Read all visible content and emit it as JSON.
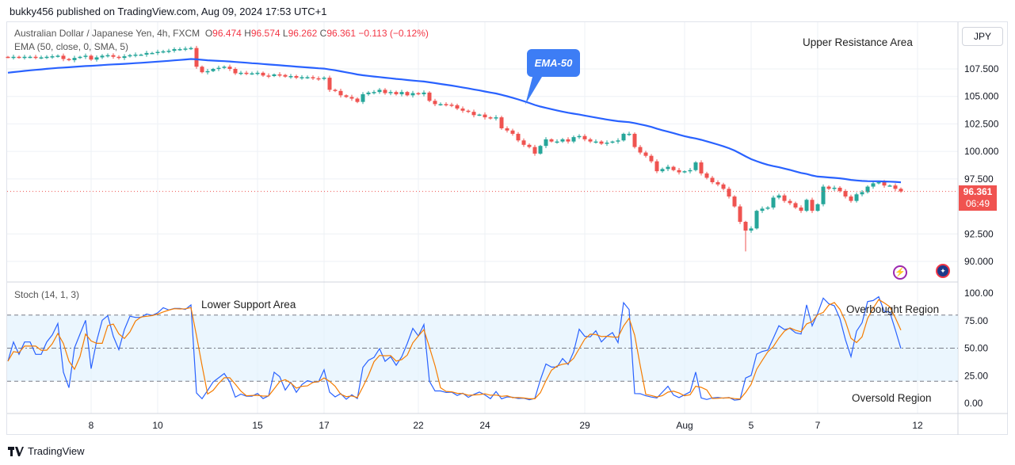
{
  "header": {
    "published": "bukky456 published on TradingView.com, Aug 09, 2024 17:53 UTC+1"
  },
  "legend": {
    "symbol": "Australian Dollar / Japanese Yen, 4h, FXCM",
    "o_label": "O",
    "o": "96.474",
    "h_label": "H",
    "h": "96.574",
    "l_label": "L",
    "l": "96.262",
    "c_label": "C",
    "c": "96.361",
    "change": "−0.113 (−0.12%)",
    "ema": "EMA (50, close, 0, SMA, 5)",
    "stoch": "Stoch (14, 1, 3)"
  },
  "currency": "JPY",
  "last_price": {
    "price": "96.361",
    "countdown": "06:49"
  },
  "annotations": {
    "upper": "Upper Resistance Area",
    "ema": "EMA-50",
    "lower": "Lower Support Area",
    "overbought": "Overbought Region",
    "oversold": "Oversold Region"
  },
  "footer": {
    "brand": "TradingView"
  },
  "icons": {
    "lightning": "lightning-icon",
    "flag": "au-flag-icon"
  },
  "colors": {
    "up": "#26a69a",
    "down": "#ef5350",
    "ema": "#2962ff",
    "k": "#2962ff",
    "d": "#f57c00",
    "band": "#e3f2fd"
  },
  "chart_data": {
    "type": "candlestick",
    "title": "Australian Dollar / Japanese Yen, 4h, FXCM",
    "price_ticks": [
      "107.500",
      "105.000",
      "102.500",
      "100.000",
      "97.500",
      "92.500",
      "90.000"
    ],
    "price_tick_values": [
      107.5,
      105,
      102.5,
      100,
      97.5,
      92.5,
      90
    ],
    "ylim": [
      89.2,
      111.0
    ],
    "stoch_ticks": [
      "100.00",
      "75.00",
      "50.00",
      "25.00",
      "0.00"
    ],
    "stoch_tick_values": [
      100,
      75,
      50,
      25,
      0
    ],
    "stoch_levels": [
      80,
      50,
      20
    ],
    "x_ticks": [
      {
        "label": "8",
        "bar": 15
      },
      {
        "label": "10",
        "bar": 27
      },
      {
        "label": "15",
        "bar": 45
      },
      {
        "label": "17",
        "bar": 57
      },
      {
        "label": "22",
        "bar": 74
      },
      {
        "label": "24",
        "bar": 86
      },
      {
        "label": "29",
        "bar": 104
      },
      {
        "label": "Aug",
        "bar": 122
      },
      {
        "label": "5",
        "bar": 134
      },
      {
        "label": "7",
        "bar": 146
      },
      {
        "label": "12",
        "bar": 164
      }
    ],
    "ema_seed": 107.1,
    "closes": [
      108.55,
      108.6,
      108.55,
      108.6,
      108.6,
      108.55,
      108.55,
      108.6,
      108.65,
      108.7,
      108.4,
      108.3,
      108.5,
      108.6,
      108.7,
      108.35,
      108.55,
      108.7,
      108.75,
      108.6,
      108.5,
      108.65,
      108.75,
      108.8,
      108.8,
      108.95,
      108.95,
      109.05,
      109.1,
      109.15,
      109.3,
      109.3,
      109.35,
      109.4,
      107.7,
      107.2,
      107.3,
      107.5,
      107.6,
      107.7,
      107.5,
      107.1,
      107.15,
      107.1,
      107.1,
      107.15,
      106.9,
      106.85,
      107.0,
      106.95,
      106.8,
      106.85,
      106.7,
      106.75,
      106.75,
      106.65,
      106.6,
      106.7,
      105.6,
      105.5,
      105.1,
      104.95,
      104.8,
      104.5,
      105.2,
      105.35,
      105.4,
      105.6,
      105.3,
      105.4,
      105.2,
      105.4,
      105.1,
      105.3,
      105.2,
      105.35,
      104.6,
      104.3,
      104.3,
      104.25,
      104.2,
      103.9,
      103.7,
      103.6,
      103.3,
      103.35,
      103.1,
      103.0,
      103.1,
      102.1,
      101.9,
      101.6,
      101.0,
      100.6,
      100.4,
      99.8,
      100.5,
      101.1,
      100.9,
      100.9,
      101.1,
      100.9,
      101.3,
      101.4,
      101.1,
      100.9,
      100.9,
      100.7,
      100.8,
      100.9,
      101.0,
      101.6,
      101.6,
      100.4,
      99.9,
      99.6,
      99.1,
      98.2,
      98.4,
      98.6,
      98.3,
      98.1,
      98.2,
      98.3,
      99.0,
      98.0,
      97.6,
      97.2,
      97.0,
      96.6,
      95.9,
      95.0,
      93.6,
      92.8,
      93.0,
      94.6,
      94.8,
      94.9,
      95.8,
      96.0,
      95.5,
      95.3,
      94.9,
      94.6,
      95.6,
      94.6,
      95.2,
      96.8,
      96.6,
      96.7,
      96.4,
      95.9,
      95.5,
      96.1,
      96.3,
      96.8,
      97.1,
      97.2,
      96.9,
      96.9,
      96.6,
      96.361
    ],
    "last_close": 96.361
  }
}
